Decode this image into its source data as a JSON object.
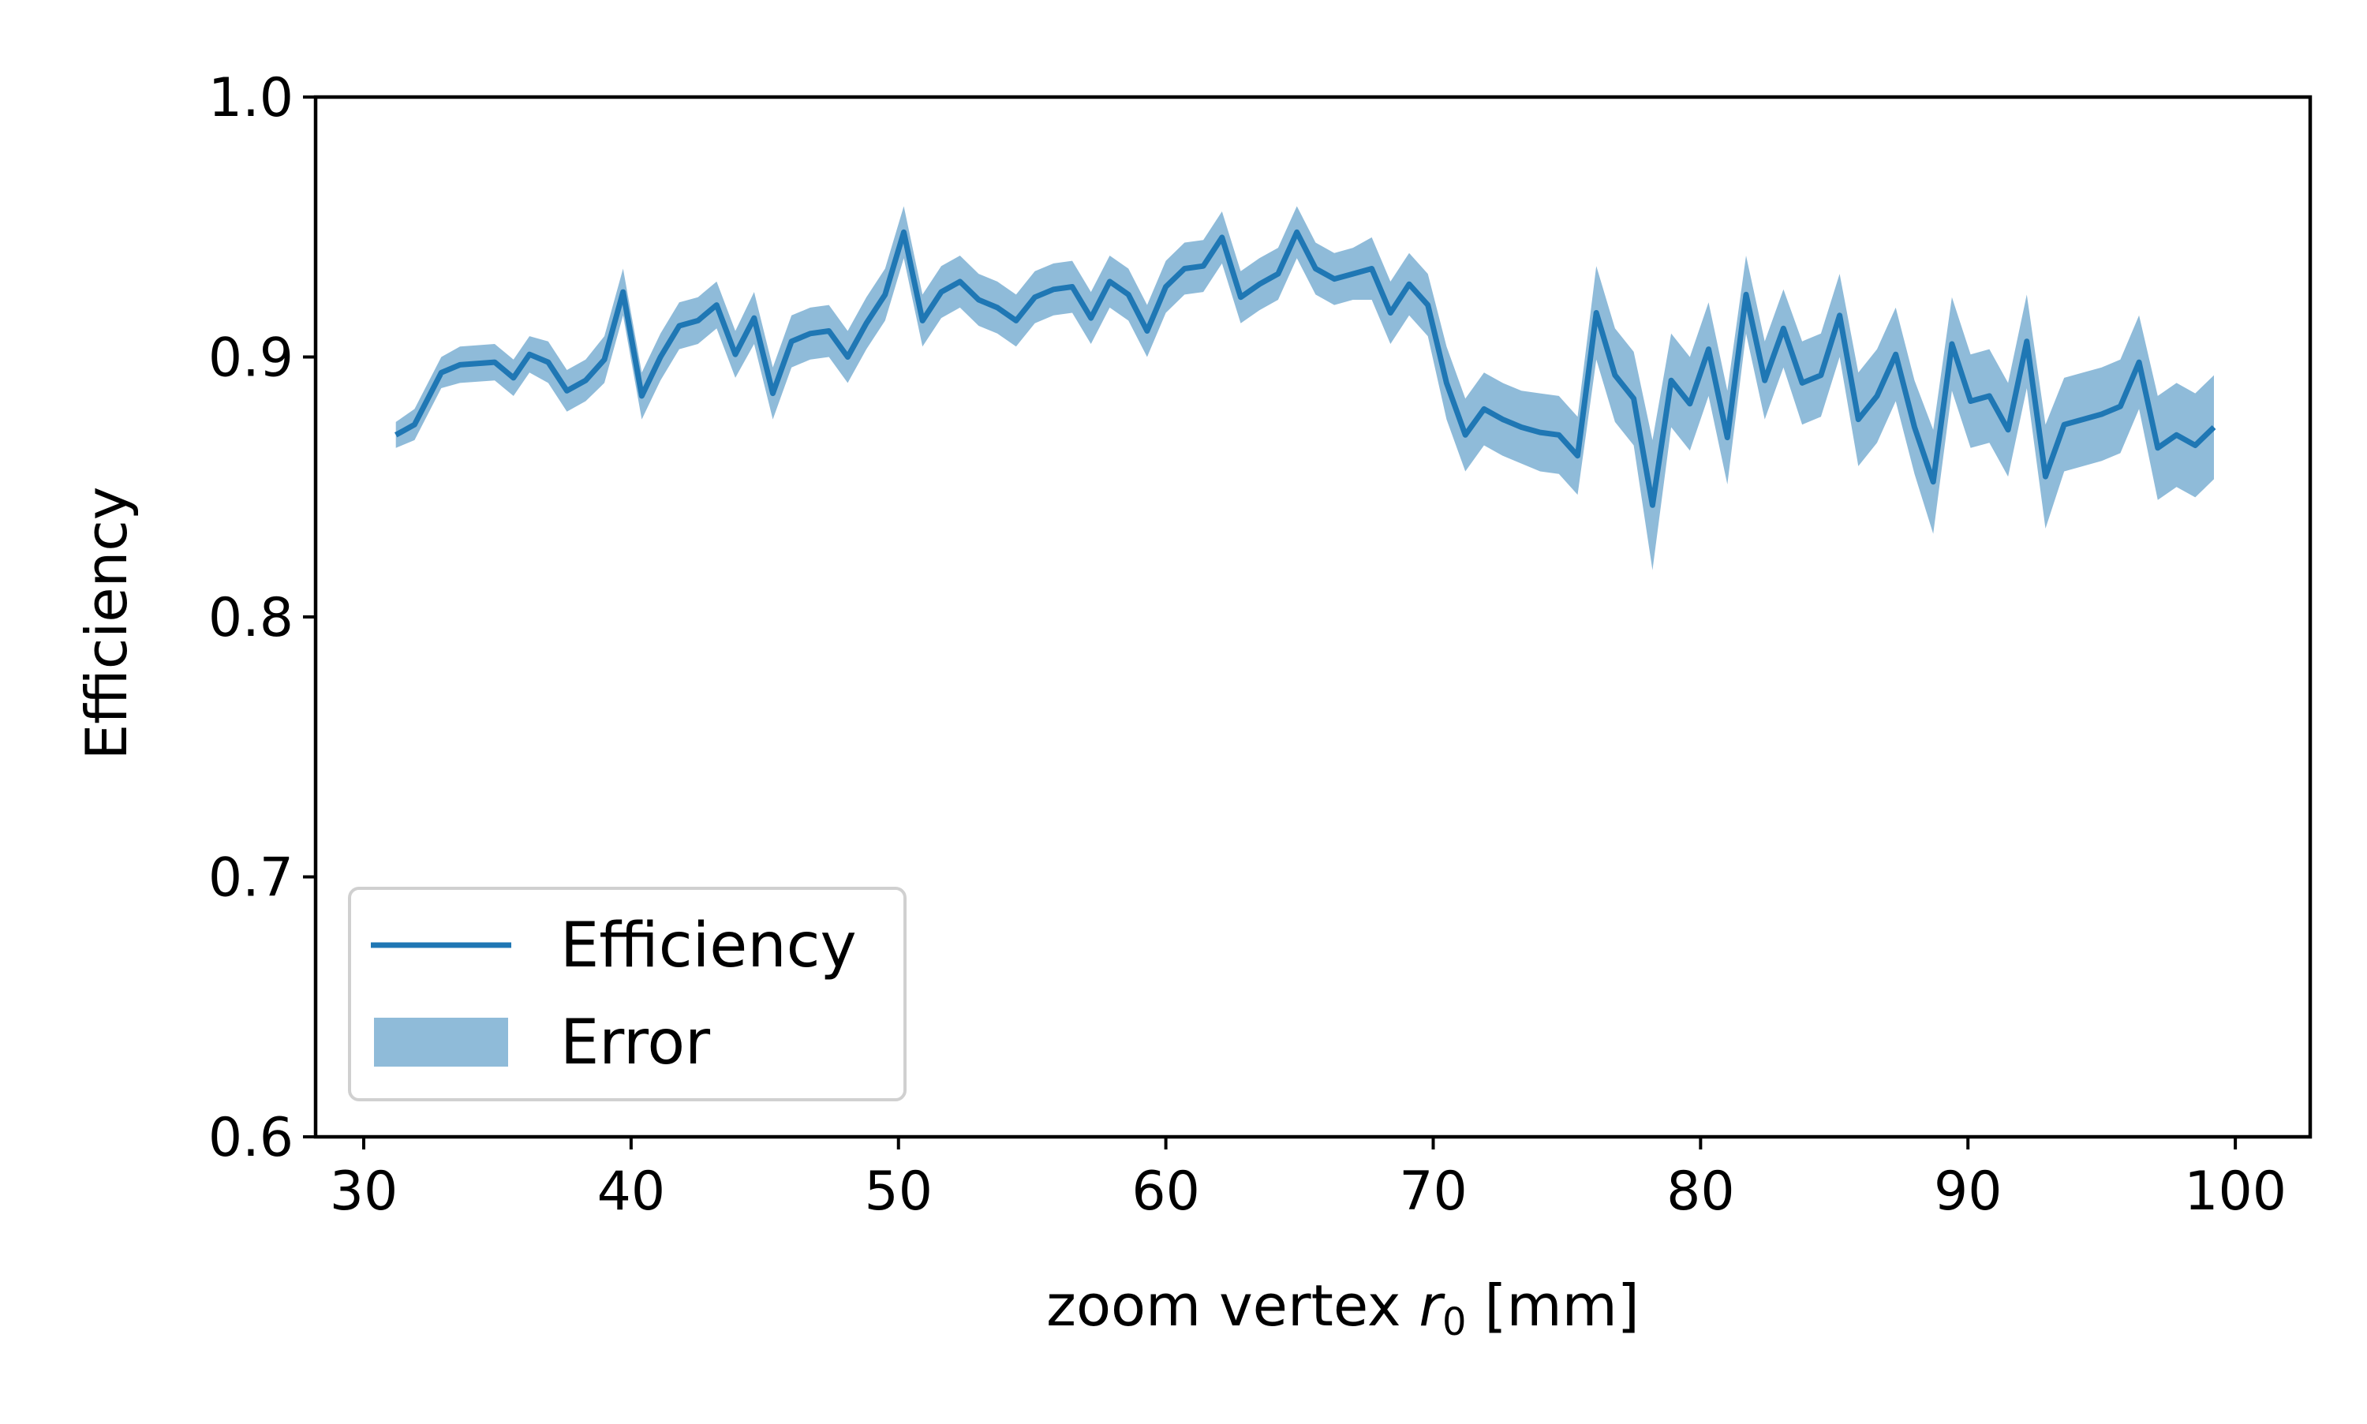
{
  "chart_data": {
    "type": "line",
    "title": "",
    "xlabel": {
      "prefix": "zoom vertex ",
      "var": "r",
      "sub": "0",
      "suffix": " [mm]"
    },
    "ylabel": "Efficiency",
    "xlim": [
      28.2,
      102.8
    ],
    "ylim": [
      0.6,
      1.0
    ],
    "xticks": [
      30,
      40,
      50,
      60,
      70,
      80,
      90,
      100
    ],
    "xtick_labels": [
      "30",
      "40",
      "50",
      "60",
      "70",
      "80",
      "90",
      "100"
    ],
    "yticks": [
      0.6,
      0.7,
      0.8,
      0.9,
      1.0
    ],
    "ytick_labels": [
      "0.6",
      "0.7",
      "0.8",
      "0.9",
      "1.0"
    ],
    "grid": false,
    "legend": {
      "placement": "lower-left",
      "entries": [
        {
          "label": "Efficiency",
          "kind": "line"
        },
        {
          "label": "Error",
          "kind": "band"
        }
      ]
    },
    "colors": {
      "line": "#1f77b4",
      "band": "#1f77b4",
      "band_opacity": 0.5
    },
    "x": [
      31.2,
      31.9,
      32.9,
      33.6,
      34.9,
      35.6,
      36.2,
      36.9,
      37.6,
      38.3,
      39.0,
      39.7,
      40.4,
      41.1,
      41.8,
      42.5,
      43.2,
      43.9,
      44.6,
      45.3,
      46.0,
      46.7,
      47.4,
      48.1,
      48.8,
      49.5,
      50.2,
      50.9,
      51.6,
      52.3,
      53.0,
      53.7,
      54.4,
      55.1,
      55.8,
      56.5,
      57.2,
      57.9,
      58.6,
      59.3,
      60.0,
      60.7,
      61.4,
      62.1,
      62.8,
      63.5,
      64.2,
      64.9,
      65.6,
      66.3,
      67.0,
      67.7,
      68.4,
      69.1,
      69.8,
      70.5,
      71.2,
      71.9,
      72.6,
      73.3,
      74.0,
      74.7,
      75.4,
      76.1,
      76.8,
      77.5,
      78.2,
      78.9,
      79.6,
      80.3,
      81.0,
      81.7,
      82.4,
      83.1,
      83.8,
      84.5,
      85.2,
      85.9,
      86.6,
      87.3,
      88.0,
      88.7,
      89.4,
      90.1,
      90.8,
      91.5,
      92.2,
      92.9,
      93.6,
      94.3,
      95.0,
      95.7,
      96.4,
      97.1,
      97.8,
      98.5,
      99.2
    ],
    "series": [
      {
        "name": "Efficiency",
        "values": [
          0.87,
          0.874,
          0.894,
          0.897,
          0.898,
          0.892,
          0.901,
          0.898,
          0.887,
          0.891,
          0.899,
          0.925,
          0.885,
          0.9,
          0.912,
          0.914,
          0.92,
          0.901,
          0.915,
          0.886,
          0.906,
          0.909,
          0.91,
          0.9,
          0.913,
          0.924,
          0.948,
          0.914,
          0.925,
          0.929,
          0.922,
          0.919,
          0.914,
          0.923,
          0.926,
          0.927,
          0.915,
          0.929,
          0.924,
          0.91,
          0.927,
          0.934,
          0.935,
          0.946,
          0.923,
          0.928,
          0.932,
          0.948,
          0.934,
          0.93,
          0.932,
          0.934,
          0.917,
          0.928,
          0.92,
          0.89,
          0.87,
          0.88,
          0.876,
          0.873,
          0.871,
          0.87,
          0.862,
          0.917,
          0.893,
          0.884,
          0.843,
          0.891,
          0.882,
          0.903,
          0.869,
          0.924,
          0.891,
          0.911,
          0.89,
          0.893,
          0.916,
          0.876,
          0.885,
          0.901,
          0.873,
          0.852,
          0.905,
          0.883,
          0.885,
          0.872,
          0.906,
          0.854,
          0.874,
          0.876,
          0.878,
          0.881,
          0.898,
          0.865,
          0.87,
          0.866,
          0.873
        ],
        "error": [
          0.005,
          0.006,
          0.006,
          0.007,
          0.007,
          0.007,
          0.007,
          0.008,
          0.008,
          0.008,
          0.009,
          0.009,
          0.009,
          0.009,
          0.009,
          0.009,
          0.009,
          0.009,
          0.01,
          0.01,
          0.01,
          0.01,
          0.01,
          0.01,
          0.01,
          0.01,
          0.01,
          0.01,
          0.01,
          0.01,
          0.01,
          0.01,
          0.01,
          0.01,
          0.01,
          0.01,
          0.01,
          0.01,
          0.01,
          0.01,
          0.01,
          0.01,
          0.01,
          0.01,
          0.01,
          0.01,
          0.01,
          0.01,
          0.01,
          0.01,
          0.01,
          0.012,
          0.012,
          0.012,
          0.012,
          0.014,
          0.014,
          0.014,
          0.014,
          0.014,
          0.015,
          0.015,
          0.015,
          0.018,
          0.018,
          0.018,
          0.025,
          0.018,
          0.018,
          0.018,
          0.018,
          0.015,
          0.015,
          0.015,
          0.016,
          0.016,
          0.016,
          0.018,
          0.018,
          0.018,
          0.018,
          0.02,
          0.018,
          0.018,
          0.018,
          0.018,
          0.018,
          0.02,
          0.018,
          0.018,
          0.018,
          0.018,
          0.018,
          0.02,
          0.02,
          0.02,
          0.02
        ]
      }
    ]
  }
}
